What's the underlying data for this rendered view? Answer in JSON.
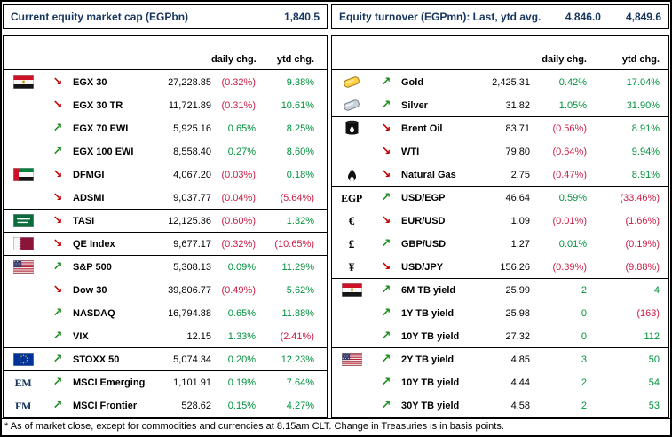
{
  "colors": {
    "navy": "#17365D",
    "positive_green": "#00913D",
    "negative_red": "#C81E46",
    "arrow_up_green": "#1E8A1E",
    "arrow_down_red": "#C00000"
  },
  "left_panel": {
    "header": {
      "title": "Current equity market cap (EGPbn)",
      "value": "1,840.5"
    },
    "columns": {
      "daily": "daily chg.",
      "ytd": "ytd chg."
    },
    "rows": [
      {
        "icon": "egypt-flag",
        "dir": "down",
        "label": "EGX 30",
        "value": "27,228.85",
        "daily": "(0.32%)",
        "ytd": "9.38%",
        "group": false
      },
      {
        "icon": "",
        "dir": "down",
        "label": "EGX 30 TR",
        "value": "11,721.89",
        "daily": "(0.31%)",
        "ytd": "10.61%",
        "group": false
      },
      {
        "icon": "",
        "dir": "up",
        "label": "EGX 70 EWI",
        "value": "5,925.16",
        "daily": "0.65%",
        "ytd": "8.25%",
        "group": false
      },
      {
        "icon": "",
        "dir": "up",
        "label": "EGX 100 EWI",
        "value": "8,558.40",
        "daily": "0.27%",
        "ytd": "8.60%",
        "group": false
      },
      {
        "icon": "uae-flag",
        "dir": "down",
        "label": "DFMGI",
        "value": "4,067.20",
        "daily": "(0.03%)",
        "ytd": "0.18%",
        "group": true
      },
      {
        "icon": "",
        "dir": "down",
        "label": "ADSMI",
        "value": "9,037.77",
        "daily": "(0.04%)",
        "ytd": "(5.64%)",
        "group": false
      },
      {
        "icon": "saudi-flag",
        "dir": "down",
        "label": "TASI",
        "value": "12,125.36",
        "daily": "(0.60%)",
        "ytd": "1.32%",
        "group": true
      },
      {
        "icon": "qatar-flag",
        "dir": "down",
        "label": "QE Index",
        "value": "9,677.17",
        "daily": "(0.32%)",
        "ytd": "(10.65%)",
        "group": true
      },
      {
        "icon": "us-flag",
        "dir": "up",
        "label": "S&P 500",
        "value": "5,308.13",
        "daily": "0.09%",
        "ytd": "11.29%",
        "group": true
      },
      {
        "icon": "",
        "dir": "down",
        "label": "Dow 30",
        "value": "39,806.77",
        "daily": "(0.49%)",
        "ytd": "5.62%",
        "group": false
      },
      {
        "icon": "",
        "dir": "up",
        "label": "NASDAQ",
        "value": "16,794.88",
        "daily": "0.65%",
        "ytd": "11.88%",
        "group": false
      },
      {
        "icon": "",
        "dir": "up",
        "label": "VIX",
        "value": "12.15",
        "daily": "1.33%",
        "ytd": "(2.41%)",
        "group": false
      },
      {
        "icon": "eu-flag",
        "dir": "up",
        "label": "STOXX 50",
        "value": "5,074.34",
        "daily": "0.20%",
        "ytd": "12.23%",
        "group": true
      },
      {
        "icon": "em-label",
        "symbol": "EM",
        "dir": "up",
        "label": "MSCI Emerging",
        "value": "1,101.91",
        "daily": "0.19%",
        "ytd": "7.64%",
        "group": true
      },
      {
        "icon": "fm-label",
        "symbol": "FM",
        "dir": "up",
        "label": "MSCI Frontier",
        "value": "528.62",
        "daily": "0.15%",
        "ytd": "4.27%",
        "group": false
      }
    ]
  },
  "right_panel": {
    "header": {
      "title": "Equity turnover (EGPmn): Last, ytd avg.",
      "last_value": "4,846.0",
      "ytd_avg_value": "4,849.6"
    },
    "columns": {
      "daily": "daily chg.",
      "ytd": "ytd chg."
    },
    "rows": [
      {
        "icon": "gold-bar",
        "dir": "up",
        "label": "Gold",
        "value": "2,425.31",
        "daily": "0.42%",
        "ytd": "17.04%",
        "group": false
      },
      {
        "icon": "silver-bar",
        "dir": "up",
        "label": "Silver",
        "value": "31.82",
        "daily": "1.05%",
        "ytd": "31.90%",
        "group": false
      },
      {
        "icon": "oil-barrel",
        "dir": "down",
        "label": "Brent Oil",
        "value": "83.71",
        "daily": "(0.56%)",
        "ytd": "8.91%",
        "group": true
      },
      {
        "icon": "",
        "dir": "down",
        "label": "WTI",
        "value": "79.80",
        "daily": "(0.64%)",
        "ytd": "9.94%",
        "group": false
      },
      {
        "icon": "flame",
        "dir": "down",
        "label": "Natural Gas",
        "value": "2.75",
        "daily": "(0.47%)",
        "ytd": "8.91%",
        "group": true
      },
      {
        "icon": "egp-symbol",
        "symbol": "EGP",
        "dir": "up",
        "label": "USD/EGP",
        "value": "46.64",
        "daily": "0.59%",
        "ytd": "(33.46%)",
        "group": true
      },
      {
        "icon": "euro-symbol",
        "symbol": "€",
        "dir": "down",
        "label": "EUR/USD",
        "value": "1.09",
        "daily": "(0.01%)",
        "ytd": "(1.66%)",
        "group": false
      },
      {
        "icon": "pound-symbol",
        "symbol": "£",
        "dir": "up",
        "label": "GBP/USD",
        "value": "1.27",
        "daily": "0.01%",
        "ytd": "(0.19%)",
        "group": false
      },
      {
        "icon": "yen-symbol",
        "symbol": "¥",
        "dir": "down",
        "label": "USD/JPY",
        "value": "156.26",
        "daily": "(0.39%)",
        "ytd": "(9.88%)",
        "group": false
      },
      {
        "icon": "egypt-flag",
        "dir": "up",
        "label": "6M TB yield",
        "value": "25.99",
        "daily": "2",
        "ytd": "4",
        "group": true
      },
      {
        "icon": "",
        "dir": "up",
        "label": "1Y TB yield",
        "value": "25.98",
        "daily": "0",
        "ytd": "(163)",
        "group": false
      },
      {
        "icon": "",
        "dir": "up",
        "label": "10Y TB yield",
        "value": "27.32",
        "daily": "0",
        "ytd": "112",
        "group": false
      },
      {
        "icon": "us-flag",
        "dir": "up",
        "label": "2Y TB yield",
        "value": "4.85",
        "daily": "3",
        "ytd": "50",
        "group": true
      },
      {
        "icon": "",
        "dir": "up",
        "label": "10Y TB yield",
        "value": "4.44",
        "daily": "2",
        "ytd": "54",
        "group": false
      },
      {
        "icon": "",
        "dir": "up",
        "label": "30Y TB yield",
        "value": "4.58",
        "daily": "2",
        "ytd": "53",
        "group": false
      }
    ]
  },
  "footnote": "* As of market close, except for commodities and currencies at 8.15am CLT. Change in Treasuries is in basis points."
}
